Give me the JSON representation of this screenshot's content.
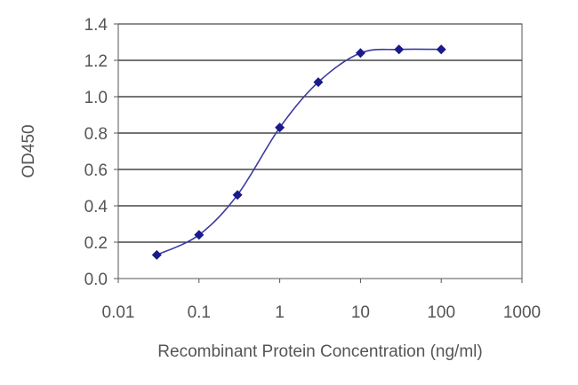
{
  "chart_data": {
    "type": "line",
    "title": "",
    "xlabel": "Recombinant Protein Concentration (ng/ml)",
    "ylabel": "OD450",
    "x_scale": "log",
    "xlim": [
      0.01,
      1000
    ],
    "ylim": [
      0.0,
      1.4
    ],
    "x_ticks": [
      0.01,
      0.1,
      1,
      10,
      100,
      1000
    ],
    "x_tick_labels": [
      "0.01",
      "0.1",
      "1",
      "10",
      "100",
      "1000"
    ],
    "y_ticks": [
      0.0,
      0.2,
      0.4,
      0.6,
      0.8,
      1.0,
      1.2,
      1.4
    ],
    "y_tick_labels": [
      "0.0",
      "0.2",
      "0.4",
      "0.6",
      "0.8",
      "1.0",
      "1.2",
      "1.4"
    ],
    "grid": "horizontal",
    "legend": "none",
    "series": [
      {
        "x": [
          0.03,
          0.1,
          0.3,
          1,
          3,
          10,
          30,
          100
        ],
        "y": [
          0.13,
          0.24,
          0.46,
          0.83,
          1.08,
          1.24,
          1.26,
          1.26
        ]
      }
    ],
    "colors": {
      "line": "#3a3aa0",
      "marker": "#1a1a8c",
      "grid": "#222222",
      "axis": "#555555",
      "text": "#555555"
    }
  }
}
